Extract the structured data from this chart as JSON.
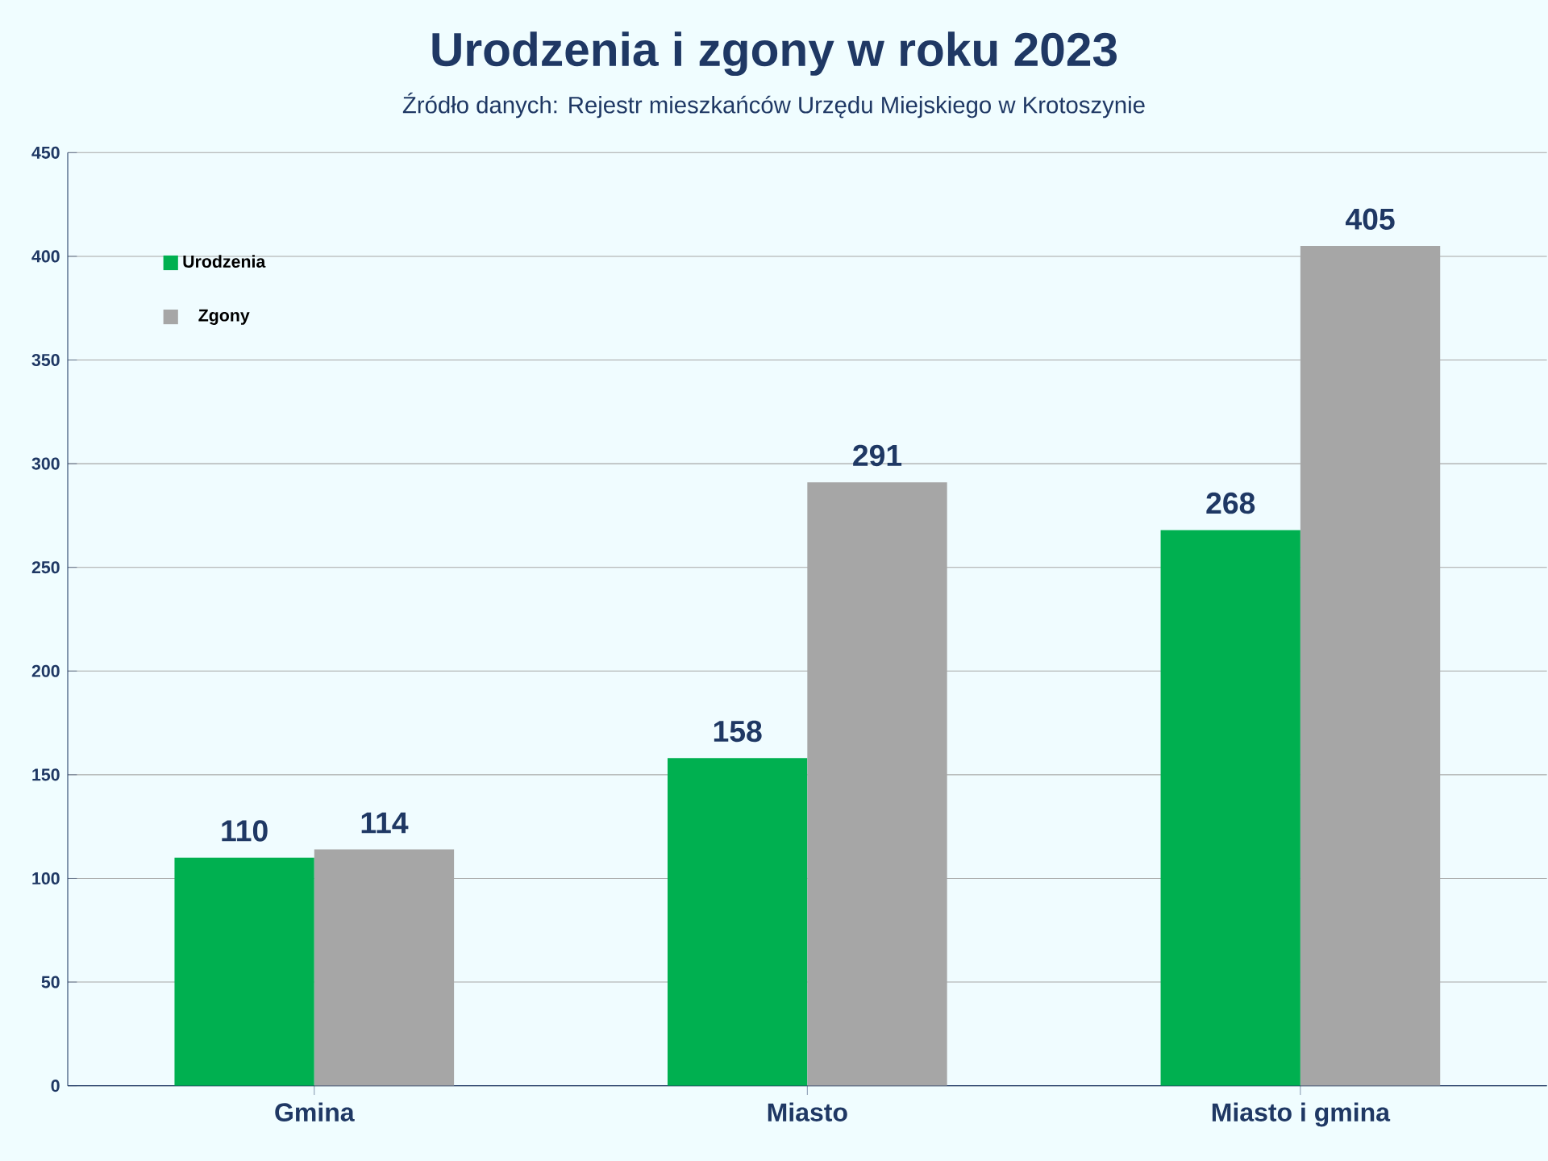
{
  "chart_data": {
    "type": "bar",
    "title": "Urodzenia i zgony w roku 2023",
    "subtitle": "Źródło danych: Rejestr mieszkańców Urzędu Miejskiego w Krotoszynie",
    "categories": [
      "Gmina",
      "Miasto",
      "Miasto i gmina"
    ],
    "series": [
      {
        "name": "Urodzenia",
        "color": "#00b050",
        "values": [
          110,
          158,
          268
        ]
      },
      {
        "name": "Zgony",
        "color": "#a6a6a6",
        "values": [
          114,
          291,
          405
        ]
      }
    ],
    "ylim": [
      0,
      450
    ],
    "yticks": [
      0,
      50,
      100,
      150,
      200,
      250,
      300,
      350,
      400,
      450
    ],
    "grid": "y",
    "legend": "top left",
    "data_labels": true
  }
}
